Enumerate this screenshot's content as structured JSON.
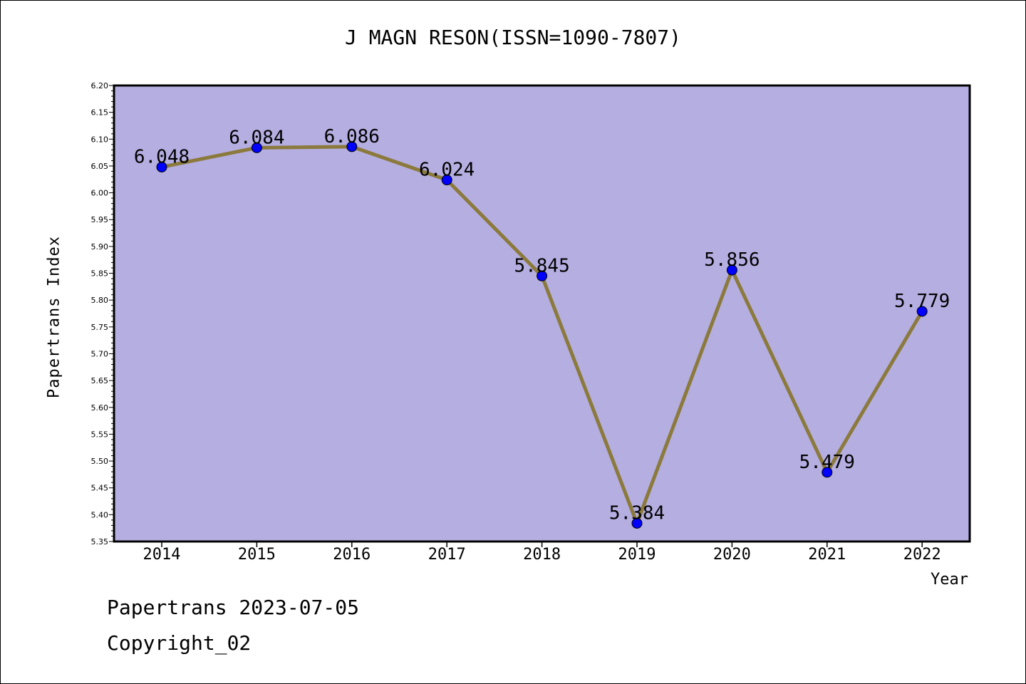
{
  "chart_data": {
    "type": "line",
    "title": "J MAGN RESON(ISSN=1090-7807)",
    "xlabel": "Year",
    "ylabel": "Papertrans Index",
    "categories": [
      "2014",
      "2015",
      "2016",
      "2017",
      "2018",
      "2019",
      "2020",
      "2021",
      "2022"
    ],
    "values": [
      6.048,
      6.084,
      6.086,
      6.024,
      5.845,
      5.384,
      5.856,
      5.479,
      5.779
    ],
    "data_labels": [
      "6.048",
      "6.084",
      "6.086",
      "6.024",
      "5.845",
      "5.384",
      "5.856",
      "5.479",
      "5.779"
    ],
    "ylim": [
      5.35,
      6.2
    ],
    "yticks": [
      "5.35",
      "5.40",
      "5.45",
      "5.50",
      "5.55",
      "5.60",
      "5.65",
      "5.70",
      "5.75",
      "5.80",
      "5.85",
      "5.90",
      "5.95",
      "6.00",
      "6.05",
      "6.10",
      "6.15",
      "6.20"
    ],
    "grid": false,
    "legend": "none",
    "colors": {
      "plot_background": "#b5aee1",
      "line": "#8b7a3c",
      "marker": "#0000ff"
    }
  },
  "footer": {
    "date_text": "Papertrans 2023-07-05",
    "copyright_text": "Copyright_02"
  }
}
